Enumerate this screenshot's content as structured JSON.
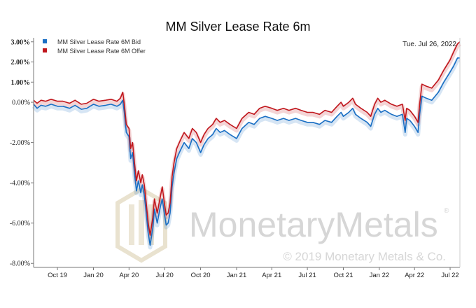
{
  "chart_data": {
    "type": "line",
    "title": "MM Silver Lease Rate 6m",
    "date_label": "Tue. Jul 26, 2022",
    "watermark": {
      "brand": "MonetaryMetals",
      "registered": "®",
      "copyright": "© 2019 Monetary Metals & Co."
    },
    "ylim": [
      -8.2,
      3.2
    ],
    "y_ticks": [
      {
        "value": 3,
        "label": "3.00%",
        "bold": true
      },
      {
        "value": 2,
        "label": "2.00%",
        "bold": true
      },
      {
        "value": 1,
        "label": "1.00%",
        "bold": true
      },
      {
        "value": 0,
        "label": "0.00%"
      },
      {
        "value": -2,
        "label": "-2.00%"
      },
      {
        "value": -4,
        "label": "-4.00%"
      },
      {
        "value": -6,
        "label": "-6.00%"
      },
      {
        "value": -8,
        "label": "-8.00%"
      }
    ],
    "x_ticks": [
      "Oct 19",
      "Jan 20",
      "Apr 20",
      "Jul 20",
      "Oct 20",
      "Jan 21",
      "Apr 21",
      "Jul 21",
      "Oct 21",
      "Jan 22",
      "Apr 22",
      "Jul 22"
    ],
    "x_start": "2019-08-01",
    "x_end": "2022-07-26",
    "grid": false,
    "legend_position": "top-left",
    "series": [
      {
        "name": "MM Silver Lease Rate 6M Bid",
        "color": "#1a6fc4",
        "points": [
          [
            "2019-08-01",
            -0.1
          ],
          [
            "2019-08-10",
            -0.3
          ],
          [
            "2019-08-20",
            -0.15
          ],
          [
            "2019-09-01",
            -0.2
          ],
          [
            "2019-09-15",
            -0.1
          ],
          [
            "2019-10-01",
            -0.2
          ],
          [
            "2019-10-15",
            -0.2
          ],
          [
            "2019-11-01",
            -0.3
          ],
          [
            "2019-11-15",
            -0.15
          ],
          [
            "2019-12-01",
            -0.35
          ],
          [
            "2019-12-15",
            -0.3
          ],
          [
            "2020-01-01",
            -0.1
          ],
          [
            "2020-01-15",
            -0.2
          ],
          [
            "2020-02-01",
            -0.15
          ],
          [
            "2020-02-15",
            -0.1
          ],
          [
            "2020-03-01",
            -0.2
          ],
          [
            "2020-03-10",
            -0.1
          ],
          [
            "2020-03-16",
            0.1
          ],
          [
            "2020-03-20",
            -0.5
          ],
          [
            "2020-03-25",
            -1.5
          ],
          [
            "2020-04-01",
            -1.7
          ],
          [
            "2020-04-05",
            -2.8
          ],
          [
            "2020-04-10",
            -2.5
          ],
          [
            "2020-04-15",
            -3.5
          ],
          [
            "2020-04-20",
            -4.4
          ],
          [
            "2020-04-25",
            -3.9
          ],
          [
            "2020-05-01",
            -4.5
          ],
          [
            "2020-05-05",
            -4.1
          ],
          [
            "2020-05-10",
            -4.6
          ],
          [
            "2020-05-15",
            -5.5
          ],
          [
            "2020-05-20",
            -6.5
          ],
          [
            "2020-05-25",
            -7.1
          ],
          [
            "2020-06-01",
            -6.2
          ],
          [
            "2020-06-05",
            -5.3
          ],
          [
            "2020-06-12",
            -6.0
          ],
          [
            "2020-06-20",
            -5.2
          ],
          [
            "2020-06-25",
            -4.8
          ],
          [
            "2020-07-01",
            -5.6
          ],
          [
            "2020-07-05",
            -6.1
          ],
          [
            "2020-07-10",
            -6.0
          ],
          [
            "2020-07-15",
            -5.5
          ],
          [
            "2020-07-20",
            -4.2
          ],
          [
            "2020-07-25",
            -3.5
          ],
          [
            "2020-08-01",
            -2.8
          ],
          [
            "2020-08-10",
            -2.4
          ],
          [
            "2020-08-20",
            -2.0
          ],
          [
            "2020-09-01",
            -2.3
          ],
          [
            "2020-09-10",
            -1.8
          ],
          [
            "2020-09-20",
            -2.0
          ],
          [
            "2020-10-01",
            -2.5
          ],
          [
            "2020-10-10",
            -2.1
          ],
          [
            "2020-10-20",
            -1.8
          ],
          [
            "2020-11-01",
            -1.6
          ],
          [
            "2020-11-10",
            -1.3
          ],
          [
            "2020-11-20",
            -1.5
          ],
          [
            "2020-12-01",
            -1.4
          ],
          [
            "2020-12-15",
            -1.6
          ],
          [
            "2021-01-01",
            -1.8
          ],
          [
            "2021-01-15",
            -1.3
          ],
          [
            "2021-02-01",
            -1.0
          ],
          [
            "2021-02-15",
            -1.1
          ],
          [
            "2021-03-01",
            -0.8
          ],
          [
            "2021-03-15",
            -0.7
          ],
          [
            "2021-04-01",
            -0.8
          ],
          [
            "2021-04-15",
            -0.9
          ],
          [
            "2021-05-01",
            -0.8
          ],
          [
            "2021-05-15",
            -0.9
          ],
          [
            "2021-06-01",
            -0.8
          ],
          [
            "2021-06-15",
            -0.9
          ],
          [
            "2021-07-01",
            -1.0
          ],
          [
            "2021-07-15",
            -1.0
          ],
          [
            "2021-08-01",
            -1.1
          ],
          [
            "2021-08-15",
            -0.9
          ],
          [
            "2021-09-01",
            -1.0
          ],
          [
            "2021-09-15",
            -0.7
          ],
          [
            "2021-09-25",
            -0.5
          ],
          [
            "2021-10-01",
            -0.7
          ],
          [
            "2021-10-15",
            -0.5
          ],
          [
            "2021-10-25",
            -0.3
          ],
          [
            "2021-11-01",
            -0.6
          ],
          [
            "2021-11-15",
            -0.8
          ],
          [
            "2021-12-01",
            -1.0
          ],
          [
            "2021-12-10",
            -1.2
          ],
          [
            "2021-12-20",
            -0.6
          ],
          [
            "2021-12-28",
            -0.3
          ],
          [
            "2022-01-05",
            -0.5
          ],
          [
            "2022-01-15",
            -0.4
          ],
          [
            "2022-02-01",
            -0.6
          ],
          [
            "2022-02-15",
            -0.7
          ],
          [
            "2022-03-01",
            -0.6
          ],
          [
            "2022-03-08",
            -1.5
          ],
          [
            "2022-03-12",
            -0.8
          ],
          [
            "2022-03-20",
            -0.9
          ],
          [
            "2022-04-01",
            -1.2
          ],
          [
            "2022-04-10",
            -1.5
          ],
          [
            "2022-04-14",
            -0.6
          ],
          [
            "2022-04-20",
            0.3
          ],
          [
            "2022-05-01",
            0.2
          ],
          [
            "2022-05-15",
            0.1
          ],
          [
            "2022-06-01",
            0.5
          ],
          [
            "2022-06-15",
            1.0
          ],
          [
            "2022-07-01",
            1.5
          ],
          [
            "2022-07-10",
            1.8
          ],
          [
            "2022-07-20",
            2.2
          ],
          [
            "2022-07-26",
            2.2
          ]
        ]
      },
      {
        "name": "MM Silver Lease Rate 6M Offer",
        "color": "#c0161c",
        "points": [
          [
            "2019-08-01",
            0.1
          ],
          [
            "2019-08-10",
            -0.05
          ],
          [
            "2019-08-20",
            0.1
          ],
          [
            "2019-09-01",
            0.05
          ],
          [
            "2019-09-15",
            0.15
          ],
          [
            "2019-10-01",
            0.05
          ],
          [
            "2019-10-15",
            0.05
          ],
          [
            "2019-11-01",
            -0.05
          ],
          [
            "2019-11-15",
            0.1
          ],
          [
            "2019-12-01",
            -0.1
          ],
          [
            "2019-12-15",
            -0.05
          ],
          [
            "2020-01-01",
            0.15
          ],
          [
            "2020-01-15",
            0.05
          ],
          [
            "2020-02-01",
            0.1
          ],
          [
            "2020-02-15",
            0.15
          ],
          [
            "2020-03-01",
            0.05
          ],
          [
            "2020-03-10",
            0.2
          ],
          [
            "2020-03-16",
            0.5
          ],
          [
            "2020-03-20",
            -0.1
          ],
          [
            "2020-03-25",
            -1.1
          ],
          [
            "2020-04-01",
            -1.3
          ],
          [
            "2020-04-05",
            -2.3
          ],
          [
            "2020-04-10",
            -2.0
          ],
          [
            "2020-04-15",
            -3.0
          ],
          [
            "2020-04-20",
            -3.9
          ],
          [
            "2020-04-25",
            -3.4
          ],
          [
            "2020-05-01",
            -4.0
          ],
          [
            "2020-05-05",
            -3.6
          ],
          [
            "2020-05-10",
            -4.1
          ],
          [
            "2020-05-15",
            -5.0
          ],
          [
            "2020-05-20",
            -6.0
          ],
          [
            "2020-05-25",
            -6.6
          ],
          [
            "2020-06-01",
            -5.7
          ],
          [
            "2020-06-05",
            -4.8
          ],
          [
            "2020-06-12",
            -5.5
          ],
          [
            "2020-06-20",
            -4.7
          ],
          [
            "2020-06-25",
            -4.2
          ],
          [
            "2020-07-01",
            -5.1
          ],
          [
            "2020-07-05",
            -5.6
          ],
          [
            "2020-07-10",
            -5.5
          ],
          [
            "2020-07-15",
            -5.0
          ],
          [
            "2020-07-20",
            -3.7
          ],
          [
            "2020-07-25",
            -3.0
          ],
          [
            "2020-08-01",
            -2.3
          ],
          [
            "2020-08-10",
            -1.9
          ],
          [
            "2020-08-20",
            -1.5
          ],
          [
            "2020-09-01",
            -1.8
          ],
          [
            "2020-09-10",
            -1.3
          ],
          [
            "2020-09-20",
            -1.5
          ],
          [
            "2020-10-01",
            -2.0
          ],
          [
            "2020-10-10",
            -1.6
          ],
          [
            "2020-10-20",
            -1.3
          ],
          [
            "2020-11-01",
            -1.1
          ],
          [
            "2020-11-10",
            -0.8
          ],
          [
            "2020-11-20",
            -1.0
          ],
          [
            "2020-12-01",
            -0.9
          ],
          [
            "2020-12-15",
            -1.1
          ],
          [
            "2021-01-01",
            -1.3
          ],
          [
            "2021-01-15",
            -0.8
          ],
          [
            "2021-02-01",
            -0.5
          ],
          [
            "2021-02-15",
            -0.6
          ],
          [
            "2021-03-01",
            -0.3
          ],
          [
            "2021-03-15",
            -0.2
          ],
          [
            "2021-04-01",
            -0.3
          ],
          [
            "2021-04-15",
            -0.4
          ],
          [
            "2021-05-01",
            -0.3
          ],
          [
            "2021-05-15",
            -0.4
          ],
          [
            "2021-06-01",
            -0.3
          ],
          [
            "2021-06-15",
            -0.4
          ],
          [
            "2021-07-01",
            -0.5
          ],
          [
            "2021-07-15",
            -0.5
          ],
          [
            "2021-08-01",
            -0.6
          ],
          [
            "2021-08-15",
            -0.4
          ],
          [
            "2021-09-01",
            -0.5
          ],
          [
            "2021-09-15",
            -0.2
          ],
          [
            "2021-09-25",
            0.0
          ],
          [
            "2021-10-01",
            -0.2
          ],
          [
            "2021-10-15",
            0.0
          ],
          [
            "2021-10-25",
            0.2
          ],
          [
            "2021-11-01",
            -0.1
          ],
          [
            "2021-11-15",
            -0.3
          ],
          [
            "2021-12-01",
            -0.5
          ],
          [
            "2021-12-10",
            -0.7
          ],
          [
            "2021-12-20",
            -0.1
          ],
          [
            "2021-12-28",
            0.2
          ],
          [
            "2022-01-05",
            0.0
          ],
          [
            "2022-01-15",
            0.1
          ],
          [
            "2022-02-01",
            -0.1
          ],
          [
            "2022-02-15",
            -0.2
          ],
          [
            "2022-03-01",
            -0.1
          ],
          [
            "2022-03-08",
            -0.9
          ],
          [
            "2022-03-12",
            -0.3
          ],
          [
            "2022-03-20",
            -0.4
          ],
          [
            "2022-04-01",
            -0.7
          ],
          [
            "2022-04-10",
            -1.0
          ],
          [
            "2022-04-14",
            -0.1
          ],
          [
            "2022-04-20",
            0.9
          ],
          [
            "2022-05-01",
            0.8
          ],
          [
            "2022-05-15",
            0.7
          ],
          [
            "2022-06-01",
            1.1
          ],
          [
            "2022-06-15",
            1.6
          ],
          [
            "2022-07-01",
            2.1
          ],
          [
            "2022-07-10",
            2.5
          ],
          [
            "2022-07-20",
            2.9
          ],
          [
            "2022-07-26",
            3.0
          ]
        ]
      }
    ]
  }
}
